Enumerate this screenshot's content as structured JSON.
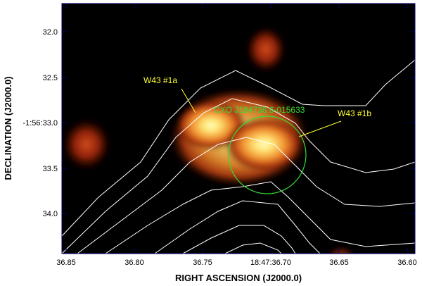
{
  "image": {
    "x_axis_label": "RIGHT ASCENSION (J2000.0)",
    "y_axis_label": "DECLINATION (J2000.0)",
    "x_ticks": [
      "36.85",
      "36.80",
      "36.75",
      "18:47:36.70",
      "36.65",
      "36.60"
    ],
    "y_ticks": [
      "32.0",
      "32.5",
      "-1:56:33.0",
      "33.5",
      "34.0"
    ],
    "annotations": {
      "source_1a": "W43 #1a",
      "source_1b": "W43 #1b",
      "cxo_source": "CXO J184736.6-015633"
    },
    "colors": {
      "background": "#000000",
      "contours": "#ffffff",
      "source_labels": "#ffff33",
      "cxo_label_and_circle": "#33dd33",
      "frame": "#000066"
    },
    "colormap": "heat"
  }
}
